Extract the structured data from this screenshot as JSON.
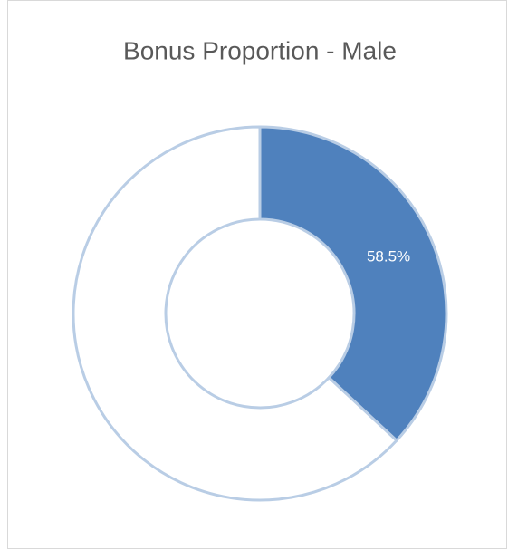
{
  "chart_data": {
    "type": "donut",
    "title": "Bonus Proportion - Male",
    "categories": [
      null,
      null
    ],
    "values": [
      58.5,
      100
    ],
    "value_labels": [
      "58.5%",
      null
    ],
    "colors": [
      "#4f81bd",
      "#ffffff"
    ]
  }
}
